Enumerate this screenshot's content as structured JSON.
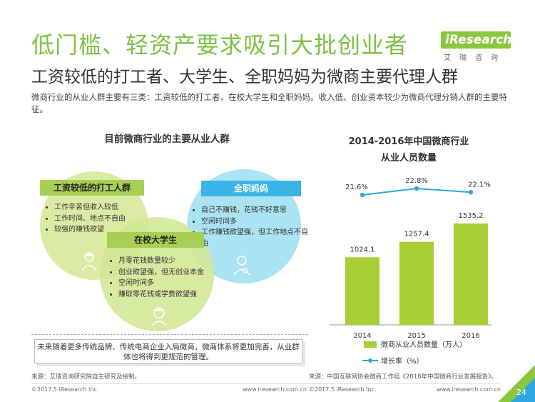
{
  "header": {
    "title": "低门槛、轻资产要求吸引大批创业者",
    "subtitle": "工资较低的打工者、大学生、全职妈妈为微商主要代理人群",
    "description": "微商行业的从业人群主要有三类：工资较低的打工者、在校大学生和全职妈妈。收入低、创业资本较少为微商代理分销人群的主要特征。"
  },
  "logo": {
    "word": "iResearch",
    "cn": "艾瑞咨询"
  },
  "venn": {
    "title": "目前微商行业的主要从业人群",
    "groups": [
      {
        "label": "工资较低的打工人群",
        "items": [
          "工作辛苦但收入较低",
          "工作时间、地点不自由",
          "较强的赚钱欲望"
        ]
      },
      {
        "label": "全职妈妈",
        "items": [
          "自己不赚钱，花钱不好意思",
          "空闲时间多",
          "工作赚钱欲望强，但工作地点不自由"
        ]
      },
      {
        "label": "在校大学生",
        "items": [
          "月零花钱数量较少",
          "创业欲望强，但无创业本金",
          "空闲时间多",
          "赚取零花钱或学费欲望强"
        ]
      }
    ],
    "note": "未来随着更多传统品牌、传统电商企业入局微商，微商体系将更加完善，从业群体也将得到更规范的管理。"
  },
  "chart_data": {
    "type": "bar",
    "title_line1": "2014-2016年中国微商行业",
    "title_line2": "从业人员数量",
    "categories": [
      "2014",
      "2015",
      "2016"
    ],
    "series": [
      {
        "name": "微商从业人员数量（万人）",
        "type": "bar",
        "values": [
          1024.1,
          1257.4,
          1535.2
        ],
        "labels": [
          "1024.1",
          "1257.4",
          "1535.2"
        ]
      },
      {
        "name": "增长率（%）",
        "type": "line",
        "values": [
          21.6,
          22.8,
          22.1
        ],
        "labels": [
          "21.6%",
          "22.8%",
          "22.1%"
        ]
      }
    ],
    "colors": {
      "bar": "#a8cf35",
      "line": "#2ea7e0"
    },
    "legend_position": "bottom",
    "grid": false
  },
  "footer": {
    "source_left": "来源：艾瑞咨询研究院自主研究及绘制。",
    "source_right": "来源：中国互联网协会微商工作组《2016年中国微商行业发展报告》。",
    "copyright_left": "©2017.5 iResearch Inc.",
    "url_left": "www.iresearch.com.cn",
    "copyright_right": "©2017.5 iResearch Inc.",
    "url_right": "www.iresearch.com.cn",
    "page": "24"
  }
}
